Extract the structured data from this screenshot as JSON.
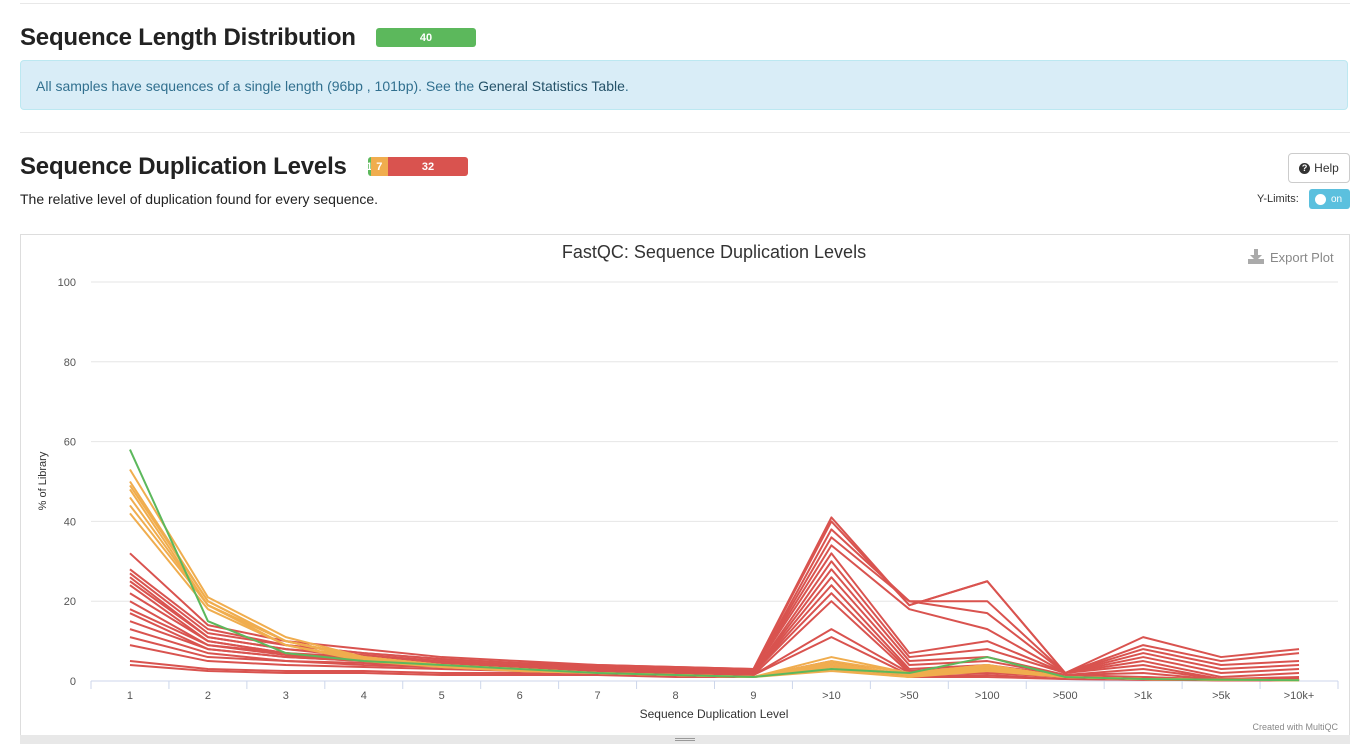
{
  "section1": {
    "title": "Sequence Length Distribution",
    "badge": [
      {
        "label": "40",
        "count": 40,
        "color": "#5cb85c"
      }
    ],
    "alert_text": "All samples have sequences of a single length (96bp , 101bp). See the ",
    "alert_link": "General Statistics Table",
    "alert_end": "."
  },
  "section2": {
    "title": "Sequence Duplication Levels",
    "badge": [
      {
        "label": "1",
        "count": 1,
        "color": "#5cb85c"
      },
      {
        "label": "7",
        "count": 7,
        "color": "#f0ad4e"
      },
      {
        "label": "32",
        "count": 32,
        "color": "#d9534f"
      }
    ],
    "description": "The relative level of duplication found for every sequence.",
    "help_label": "Help",
    "ylimits_label": "Y-Limits:",
    "toggle_label": "on"
  },
  "chart_data": {
    "type": "line",
    "title": "FastQC: Sequence Duplication Levels",
    "export_label": "Export Plot",
    "credit": "Created with MultiQC",
    "xlabel": "Sequence Duplication Level",
    "ylabel": "% of Library",
    "ylim": [
      0,
      100
    ],
    "yticks": [
      0,
      20,
      40,
      60,
      80,
      100
    ],
    "categories": [
      "1",
      "2",
      "3",
      "4",
      "5",
      "6",
      "7",
      "8",
      "9",
      ">10",
      ">50",
      ">100",
      ">500",
      ">1k",
      ">5k",
      ">10k+"
    ],
    "grid": true,
    "colors": {
      "pass": "#5cb85c",
      "warn": "#f0ad4e",
      "fail": "#d9534f"
    },
    "series": [
      {
        "status": "pass",
        "values": [
          58,
          15,
          7,
          5,
          4,
          3,
          2,
          1.5,
          1,
          3,
          2,
          6,
          1,
          0.5,
          0.3,
          0.2
        ]
      },
      {
        "status": "warn",
        "values": [
          53,
          21,
          11,
          6,
          4,
          3,
          2,
          1.5,
          1,
          6,
          2,
          4,
          1,
          0.5,
          0.3,
          0.2
        ]
      },
      {
        "status": "warn",
        "values": [
          50,
          20,
          10,
          6,
          4,
          3,
          2,
          1.5,
          1,
          5,
          2,
          4,
          1,
          0.5,
          0.3,
          0.2
        ]
      },
      {
        "status": "warn",
        "values": [
          49,
          20,
          10,
          6,
          4,
          3,
          2,
          1.5,
          1,
          4.5,
          1.5,
          4,
          1,
          0.5,
          0.3,
          0.2
        ]
      },
      {
        "status": "warn",
        "values": [
          48,
          19,
          10,
          6,
          4,
          3,
          2,
          1.5,
          1,
          4,
          1.5,
          3.5,
          1,
          0.5,
          0.3,
          0.2
        ]
      },
      {
        "status": "warn",
        "values": [
          46,
          19,
          10,
          5.5,
          4,
          3,
          2,
          1.5,
          1,
          3.5,
          1.5,
          3,
          1,
          0.5,
          0.3,
          0.2
        ]
      },
      {
        "status": "warn",
        "values": [
          44,
          19,
          9,
          5.5,
          3.5,
          2.5,
          2,
          1.5,
          1,
          3,
          1,
          3,
          1,
          0.5,
          0.3,
          0.2
        ]
      },
      {
        "status": "warn",
        "values": [
          42,
          18,
          9,
          5,
          3.5,
          2.5,
          2,
          1.5,
          1,
          2.5,
          1,
          2.5,
          1,
          0.5,
          0.3,
          0.2
        ]
      },
      {
        "status": "fail",
        "values": [
          32,
          14,
          10,
          8,
          6,
          5,
          4,
          3.5,
          3,
          41,
          19,
          25,
          2,
          11,
          6,
          8
        ]
      },
      {
        "status": "fail",
        "values": [
          28,
          13,
          9,
          7,
          5.5,
          4.5,
          4,
          3.5,
          3,
          40,
          19,
          25,
          2,
          9,
          5,
          7
        ]
      },
      {
        "status": "fail",
        "values": [
          27,
          12,
          9,
          7,
          5.5,
          4.5,
          3.5,
          3,
          2.5,
          38,
          20,
          20,
          2,
          8,
          4,
          5
        ]
      },
      {
        "status": "fail",
        "values": [
          26,
          11,
          8,
          6.5,
          5,
          4,
          3.5,
          3,
          2.5,
          36,
          20,
          17,
          2,
          7,
          3,
          4
        ]
      },
      {
        "status": "fail",
        "values": [
          25,
          11,
          8,
          6,
          5,
          4,
          3.5,
          3,
          2.5,
          34,
          18,
          13,
          2,
          6,
          2,
          3
        ]
      },
      {
        "status": "fail",
        "values": [
          24,
          10,
          7,
          6,
          5,
          4,
          3.5,
          3,
          2.5,
          32,
          7,
          10,
          2,
          5,
          1,
          2
        ]
      },
      {
        "status": "fail",
        "values": [
          22,
          10,
          7,
          5.5,
          4.5,
          4,
          3,
          2.5,
          2,
          30,
          6,
          8,
          2,
          4,
          0.5,
          1
        ]
      },
      {
        "status": "fail",
        "values": [
          20,
          9,
          7,
          5.5,
          4.5,
          3.5,
          3,
          2.5,
          2,
          28,
          5,
          6,
          1.5,
          3,
          0.5,
          0.5
        ]
      },
      {
        "status": "fail",
        "values": [
          18,
          9,
          6.5,
          5,
          4,
          3.5,
          3,
          2.5,
          2,
          26,
          4,
          5,
          1.5,
          2,
          0.3,
          0.3
        ]
      },
      {
        "status": "fail",
        "values": [
          17,
          8,
          6,
          5,
          4,
          3.5,
          3,
          2.5,
          2,
          24,
          3,
          4,
          1.5,
          1,
          0.3,
          0.3
        ]
      },
      {
        "status": "fail",
        "values": [
          15,
          8,
          6,
          5,
          4,
          3,
          2.5,
          2,
          2,
          22,
          2.5,
          3.5,
          1,
          1,
          0.3,
          0.3
        ]
      },
      {
        "status": "fail",
        "values": [
          13,
          7,
          5,
          4.5,
          3.5,
          3,
          2.5,
          2,
          1.5,
          20,
          2,
          3,
          1,
          0.5,
          0.2,
          0.2
        ]
      },
      {
        "status": "fail",
        "values": [
          11,
          6,
          5,
          4,
          3.5,
          3,
          2.5,
          2,
          1.5,
          13,
          2,
          2.5,
          1,
          0.5,
          0.2,
          0.2
        ]
      },
      {
        "status": "fail",
        "values": [
          9,
          5,
          4,
          3.5,
          3,
          2.5,
          2,
          2,
          1.5,
          11,
          1.5,
          2,
          1,
          0.5,
          0.2,
          0.2
        ]
      },
      {
        "status": "fail",
        "values": [
          5,
          3,
          2.5,
          2.5,
          2,
          2,
          1.5,
          1.5,
          1,
          5,
          1,
          1.5,
          0.5,
          0.3,
          0.2,
          0.2
        ]
      },
      {
        "status": "fail",
        "values": [
          4,
          2.5,
          2,
          2,
          1.5,
          1.5,
          1.5,
          1,
          1,
          4,
          1,
          1,
          0.5,
          0.3,
          0.2,
          0.2
        ]
      }
    ]
  }
}
